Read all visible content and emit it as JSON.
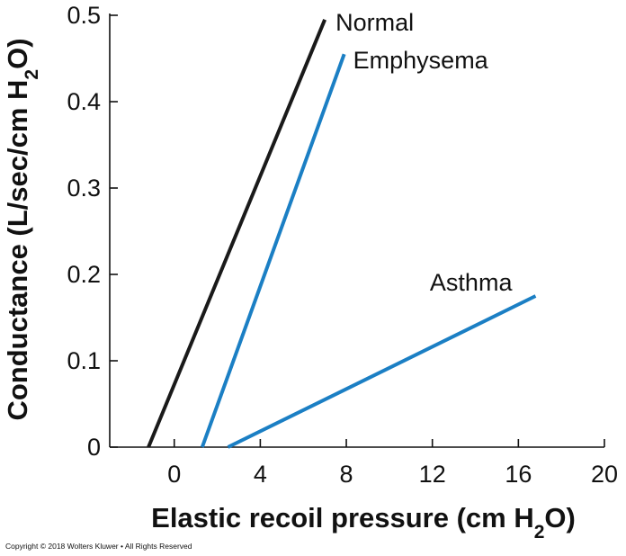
{
  "chart_data": {
    "type": "line",
    "title": "",
    "xlabel_parts": [
      "Elastic recoil pressure (cm H",
      "2",
      "O)"
    ],
    "ylabel_parts": [
      "Conductance (L/sec/cm H",
      "2",
      "O)"
    ],
    "xlim": [
      -3,
      20
    ],
    "ylim": [
      0,
      0.5
    ],
    "x_ticks": [
      0,
      4,
      8,
      12,
      16,
      20
    ],
    "y_ticks": [
      0,
      0.1,
      0.2,
      0.3,
      0.4,
      0.5
    ],
    "x_tick_labels": [
      "0",
      "4",
      "8",
      "12",
      "16",
      "20"
    ],
    "y_tick_labels": [
      "0",
      "0.1",
      "0.2",
      "0.3",
      "0.4",
      "0.5"
    ],
    "grid": false,
    "legend": "none (series labeled at line ends)",
    "series": [
      {
        "name": "Normal",
        "color": "#1a1a1a",
        "x": [
          -1.2,
          7.0
        ],
        "y": [
          0,
          0.495
        ]
      },
      {
        "name": "Emphysema",
        "color": "#1b7fc4",
        "x": [
          1.3,
          7.9
        ],
        "y": [
          0,
          0.455
        ]
      },
      {
        "name": "Asthma",
        "color": "#1b7fc4",
        "x": [
          2.5,
          16.8
        ],
        "y": [
          0,
          0.175
        ]
      }
    ]
  },
  "footer": {
    "copyright": "Copyright © 2018 Wolters Kluwer • All Rights Reserved"
  }
}
